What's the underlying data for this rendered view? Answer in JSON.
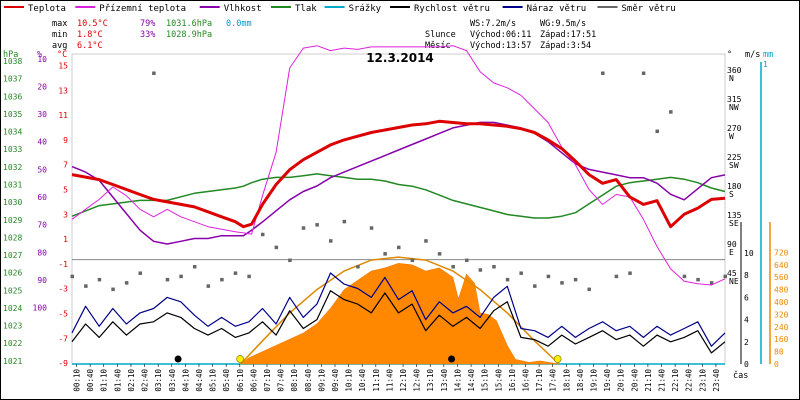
{
  "chart_data": {
    "type": "line",
    "title": "12.3.2014",
    "legend": [
      {
        "label": "Teplota",
        "color": "#dd0000"
      },
      {
        "label": "Přízemní teplota",
        "color": "#dd22dd"
      },
      {
        "label": "Vlhkost",
        "color": "#8800aa"
      },
      {
        "label": "Tlak",
        "color": "#228822"
      },
      {
        "label": "Srážky",
        "color": "#00aacc"
      },
      {
        "label": "Rychlost větru",
        "color": "#000000"
      },
      {
        "label": "Náraz větru",
        "color": "#000088"
      },
      {
        "label": "Směr větru",
        "color": "#666666"
      }
    ],
    "stats": {
      "rows": [
        {
          "label": "max",
          "temp": "10.5°C",
          "hum": "79%",
          "press": "1031.6hPa",
          "rain": "0.0mm"
        },
        {
          "label": "min",
          "temp": "1.8°C",
          "hum": "33%",
          "press": "1028.9hPa",
          "rain": ""
        },
        {
          "label": "avg",
          "temp": "6.1°C",
          "hum": "",
          "press": "",
          "rain": ""
        }
      ],
      "wind": {
        "ws": "WS:7.2m/s",
        "wg": "WG:9.5m/s"
      },
      "sun": {
        "label": "Slunce",
        "rise": "Východ:06:11",
        "set": "Západ:17:51"
      },
      "moon": {
        "label": "Měsíc",
        "rise": "Východ:13:57",
        "set": "Západ:3:54"
      }
    },
    "axes": {
      "hpa": {
        "unit": "hPa",
        "ticks": [
          "1038",
          "1037",
          "1036",
          "1035",
          "1034",
          "1033",
          "1032",
          "1031",
          "1030",
          "1029",
          "1028",
          "1027",
          "1026",
          "1025",
          "1024",
          "1023",
          "1022",
          "1021"
        ]
      },
      "pct": {
        "unit": "%",
        "ticks": [
          "100",
          "90",
          "80",
          "70",
          "60",
          "50",
          "40",
          "30",
          "20",
          "10"
        ]
      },
      "degc": {
        "unit": "°C",
        "ticks": [
          "15",
          "13",
          "11",
          "9",
          "7",
          "5",
          "3",
          "1",
          "-1",
          "-3",
          "-5",
          "-7",
          "-9"
        ]
      },
      "direction": {
        "unit": "°",
        "ticks": [
          {
            "deg": "360",
            "dir": "N"
          },
          {
            "deg": "315",
            "dir": "NW"
          },
          {
            "deg": "270",
            "dir": "W"
          },
          {
            "deg": "225",
            "dir": "SW"
          },
          {
            "deg": "180",
            "dir": "S"
          },
          {
            "deg": "135",
            "dir": "SE"
          },
          {
            "deg": "90",
            "dir": "E"
          },
          {
            "deg": "45",
            "dir": "NE"
          }
        ]
      },
      "ms": {
        "unit": "m/s",
        "ticks": [
          "10",
          "8",
          "6",
          "4",
          "2",
          "0"
        ]
      },
      "mm": {
        "unit": "mm",
        "ticks": [
          "1",
          "0"
        ]
      },
      "wm2": {
        "ticks": [
          "720",
          "640",
          "560",
          "480",
          "400",
          "320",
          "240",
          "160",
          "80",
          "0"
        ]
      },
      "time": {
        "unit": "čas",
        "ticks": [
          "00:10",
          "00:40",
          "01:10",
          "01:40",
          "02:10",
          "02:40",
          "03:10",
          "03:40",
          "04:10",
          "04:40",
          "05:10",
          "05:40",
          "06:10",
          "06:40",
          "07:10",
          "07:40",
          "08:10",
          "08:40",
          "09:10",
          "09:40",
          "10:10",
          "10:40",
          "11:10",
          "11:40",
          "12:10",
          "12:40",
          "13:10",
          "13:40",
          "14:10",
          "14:40",
          "15:10",
          "15:40",
          "16:10",
          "16:40",
          "17:10",
          "17:40",
          "18:10",
          "18:40",
          "19:10",
          "19:40",
          "20:10",
          "20:40",
          "21:10",
          "21:40",
          "22:10",
          "22:40",
          "23:10",
          "23:40"
        ]
      }
    },
    "x_range_hours": [
      0,
      24
    ],
    "series": [
      {
        "name": "Teplota",
        "unit": "°C",
        "x": [
          0,
          0.5,
          1,
          1.5,
          2,
          2.5,
          3,
          3.5,
          4,
          4.5,
          5,
          5.5,
          6,
          6.3,
          6.6,
          7,
          7.5,
          8,
          8.5,
          9,
          9.5,
          10,
          10.5,
          11,
          11.5,
          12,
          12.5,
          13,
          13.5,
          14,
          14.5,
          15,
          15.5,
          16,
          16.5,
          17,
          17.5,
          18,
          18.5,
          19,
          19.5,
          20,
          20.5,
          21,
          21.5,
          22,
          22.5,
          23,
          23.5,
          24
        ],
        "y": [
          6.2,
          6.0,
          5.8,
          5.4,
          5.0,
          4.6,
          4.2,
          4.0,
          3.8,
          3.6,
          3.2,
          2.8,
          2.4,
          2.0,
          2.2,
          3.8,
          5.4,
          6.6,
          7.4,
          8.0,
          8.6,
          9.0,
          9.3,
          9.6,
          9.8,
          10.0,
          10.2,
          10.3,
          10.5,
          10.4,
          10.3,
          10.3,
          10.2,
          10.1,
          9.9,
          9.6,
          9.0,
          8.3,
          7.3,
          6.2,
          5.5,
          5.8,
          4.4,
          3.8,
          4.1,
          2.0,
          3.0,
          3.5,
          4.2,
          4.3
        ]
      },
      {
        "name": "Přízemní teplota",
        "unit": "°C",
        "x": [
          0,
          0.5,
          1,
          1.5,
          2,
          2.5,
          3,
          3.5,
          4,
          4.5,
          5,
          5.5,
          6,
          6.3,
          6.6,
          7,
          7.5,
          8,
          8.5,
          9,
          9.5,
          10,
          10.5,
          11,
          11.5,
          12,
          12.5,
          13,
          13.5,
          14,
          14.5,
          15,
          15.5,
          16,
          16.5,
          17,
          17.5,
          18,
          18.5,
          19,
          19.5,
          20,
          20.5,
          21,
          21.5,
          22,
          22.5,
          23,
          23.5,
          24
        ],
        "y": [
          2.6,
          3.4,
          4.2,
          5.2,
          4.5,
          3.4,
          2.8,
          3.4,
          2.8,
          2.4,
          2.0,
          1.8,
          1.6,
          1.5,
          1.4,
          4.5,
          8.0,
          14.8,
          16.4,
          16.6,
          16.2,
          16.4,
          16.3,
          16.5,
          16.5,
          16.5,
          16.5,
          16.5,
          16.5,
          16.6,
          16.2,
          14.5,
          13.6,
          13.2,
          12.6,
          11.5,
          10.4,
          8.4,
          7.0,
          5.0,
          3.8,
          4.6,
          4.4,
          2.6,
          0.4,
          -1.4,
          -2.4,
          -2.6,
          -2.7,
          -2.2
        ]
      },
      {
        "name": "Vlhkost",
        "unit": "%",
        "x": [
          0,
          0.5,
          1,
          1.5,
          2,
          2.5,
          3,
          3.5,
          4,
          4.5,
          5,
          5.5,
          6,
          6.3,
          6.6,
          7,
          7.5,
          8,
          8.5,
          9,
          9.5,
          10,
          10.5,
          11,
          11.5,
          12,
          12.5,
          13,
          13.5,
          14,
          14.5,
          15,
          15.5,
          16,
          16.5,
          17,
          17.5,
          18,
          18.5,
          19,
          19.5,
          20,
          20.5,
          21,
          21.5,
          22,
          22.5,
          23,
          23.5,
          24
        ],
        "y": [
          49,
          51,
          54,
          60,
          66,
          72,
          76,
          77,
          76,
          75,
          75,
          74,
          74,
          74,
          72,
          69,
          65,
          61,
          58,
          56,
          53,
          51,
          49,
          47,
          45,
          43,
          41,
          39,
          37,
          35,
          34,
          33,
          33,
          34,
          35,
          37,
          40,
          44,
          48,
          50,
          51,
          52,
          53,
          53,
          55,
          59,
          61,
          57,
          53,
          52
        ]
      },
      {
        "name": "Tlak",
        "unit": "hPa",
        "x": [
          0,
          0.5,
          1,
          1.5,
          2,
          2.5,
          3,
          3.5,
          4,
          4.5,
          5,
          5.5,
          6,
          6.3,
          6.6,
          7,
          7.5,
          8,
          8.5,
          9,
          9.5,
          10,
          10.5,
          11,
          11.5,
          12,
          12.5,
          13,
          13.5,
          14,
          14.5,
          15,
          15.5,
          16,
          16.5,
          17,
          17.5,
          18,
          18.5,
          19,
          19.5,
          20,
          20.5,
          21,
          21.5,
          22,
          22.5,
          23,
          23.5,
          24
        ],
        "y": [
          1029.2,
          1029.5,
          1029.8,
          1029.9,
          1030.0,
          1030.1,
          1030.1,
          1030.1,
          1030.3,
          1030.5,
          1030.6,
          1030.7,
          1030.8,
          1030.9,
          1031.1,
          1031.3,
          1031.4,
          1031.4,
          1031.5,
          1031.6,
          1031.5,
          1031.4,
          1031.3,
          1031.3,
          1031.2,
          1031.0,
          1030.9,
          1030.7,
          1030.4,
          1030.1,
          1029.9,
          1029.7,
          1029.5,
          1029.3,
          1029.2,
          1029.1,
          1029.1,
          1029.2,
          1029.4,
          1029.9,
          1030.4,
          1030.9,
          1031.1,
          1031.2,
          1031.3,
          1031.4,
          1031.3,
          1031.1,
          1030.8,
          1030.6
        ]
      },
      {
        "name": "Rychlost větru",
        "unit": "m/s",
        "x": [
          0,
          0.5,
          1,
          1.5,
          2,
          2.5,
          3,
          3.5,
          4,
          4.5,
          5,
          5.5,
          6,
          6.5,
          7,
          7.5,
          8,
          8.5,
          9,
          9.5,
          10,
          10.5,
          11,
          11.5,
          12,
          12.5,
          13,
          13.5,
          14,
          14.5,
          15,
          15.5,
          16,
          16.5,
          17,
          17.5,
          18,
          18.5,
          19,
          19.5,
          20,
          20.5,
          21,
          21.5,
          22,
          22.5,
          23,
          23.5,
          24
        ],
        "y": [
          2.0,
          3.6,
          2.4,
          3.8,
          2.6,
          3.6,
          3.8,
          4.6,
          4.2,
          3.2,
          2.6,
          3.2,
          2.4,
          2.8,
          3.8,
          2.6,
          4.8,
          3.2,
          4.0,
          6.6,
          5.8,
          5.4,
          4.6,
          6.4,
          4.6,
          5.4,
          3.0,
          4.4,
          3.4,
          4.2,
          3.2,
          4.8,
          5.6,
          2.4,
          2.2,
          1.6,
          2.6,
          1.8,
          2.4,
          3.0,
          2.2,
          2.6,
          1.6,
          2.6,
          2.0,
          2.4,
          3.0,
          1.0,
          2.0
        ]
      },
      {
        "name": "Náraz větru",
        "unit": "m/s",
        "x": [
          0,
          0.5,
          1,
          1.5,
          2,
          2.5,
          3,
          3.5,
          4,
          4.5,
          5,
          5.5,
          6,
          6.5,
          7,
          7.5,
          8,
          8.5,
          9,
          9.5,
          10,
          10.5,
          11,
          11.5,
          12,
          12.5,
          13,
          13.5,
          14,
          14.5,
          15,
          15.5,
          16,
          16.5,
          17,
          17.5,
          18,
          18.5,
          19,
          19.5,
          20,
          20.5,
          21,
          21.5,
          22,
          22.5,
          23,
          23.5,
          24
        ],
        "y": [
          2.8,
          5.2,
          3.4,
          5.0,
          3.6,
          4.6,
          5.0,
          6.0,
          5.6,
          4.4,
          3.4,
          4.2,
          3.4,
          3.8,
          5.0,
          3.6,
          6.0,
          4.2,
          5.4,
          8.2,
          7.2,
          6.8,
          6.0,
          7.8,
          5.8,
          6.6,
          4.0,
          5.6,
          4.6,
          5.2,
          4.2,
          6.0,
          7.0,
          3.2,
          3.0,
          2.4,
          3.4,
          2.4,
          3.2,
          3.8,
          3.0,
          3.4,
          2.4,
          3.4,
          2.6,
          3.2,
          3.8,
          1.6,
          2.8
        ]
      },
      {
        "name": "Směr větru",
        "unit": "°",
        "x": [
          0,
          0.5,
          1,
          1.5,
          2,
          2.5,
          3,
          3.5,
          4,
          4.5,
          5,
          5.5,
          6,
          6.5,
          7,
          7.5,
          8,
          8.5,
          9,
          9.5,
          10,
          10.5,
          11,
          11.5,
          12,
          12.5,
          13,
          13.5,
          14,
          14.5,
          15,
          15.5,
          16,
          16.5,
          17,
          17.5,
          18,
          18.5,
          19,
          19.5,
          20,
          20.5,
          21,
          21.5,
          22,
          22.5,
          23,
          23.5,
          24
        ],
        "y": [
          45,
          30,
          40,
          25,
          35,
          50,
          360,
          40,
          45,
          60,
          30,
          40,
          50,
          45,
          110,
          90,
          70,
          120,
          125,
          100,
          130,
          60,
          120,
          80,
          90,
          70,
          100,
          80,
          60,
          70,
          55,
          60,
          40,
          50,
          30,
          45,
          35,
          40,
          25,
          360,
          45,
          50,
          360,
          270,
          300,
          45,
          40,
          35,
          45
        ]
      },
      {
        "name": "Sluneční záření",
        "unit": "W/m2",
        "x": [
          6.2,
          6.5,
          7,
          7.5,
          8,
          8.5,
          9,
          9.5,
          10,
          10.5,
          11,
          11.5,
          12,
          12.5,
          13,
          13.5,
          14,
          14.2,
          14.5,
          14.8,
          15,
          15.3,
          15.6,
          16,
          16.3,
          16.8,
          17.2,
          17.9
        ],
        "y": [
          0,
          40,
          80,
          120,
          160,
          200,
          260,
          360,
          480,
          540,
          600,
          620,
          650,
          640,
          600,
          620,
          560,
          420,
          580,
          520,
          330,
          320,
          280,
          120,
          30,
          10,
          20,
          0
        ]
      },
      {
        "name": "Teoretické záření",
        "unit": "W/m2",
        "x": [
          6.2,
          7,
          8,
          9,
          10,
          11,
          12,
          13,
          14,
          15,
          16,
          17,
          17.9
        ],
        "y": [
          0,
          150,
          330,
          480,
          600,
          670,
          690,
          670,
          600,
          480,
          330,
          150,
          0
        ]
      }
    ]
  }
}
